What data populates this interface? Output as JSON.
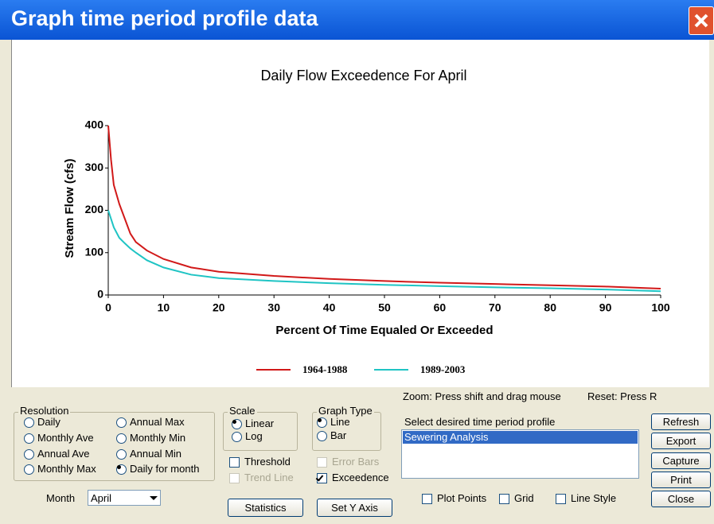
{
  "window": {
    "title": "Graph time period profile data"
  },
  "chart_data": {
    "type": "line",
    "title": "Daily Flow Exceedence For April",
    "x_label": "Percent Of Time Equaled Or Exceeded",
    "y_label": "Stream Flow (cfs)",
    "x": [
      0,
      0.5,
      1,
      2,
      3,
      4,
      5,
      7,
      10,
      15,
      20,
      30,
      40,
      50,
      60,
      70,
      80,
      90,
      100
    ],
    "series": [
      {
        "name": "1964-1988",
        "color": "#d11919",
        "values": [
          400,
          320,
          260,
          215,
          180,
          145,
          125,
          105,
          85,
          65,
          55,
          45,
          38,
          33,
          29,
          26,
          23,
          20,
          15
        ]
      },
      {
        "name": "1989-2003",
        "color": "#1fc4c4",
        "values": [
          200,
          180,
          160,
          135,
          122,
          110,
          100,
          82,
          65,
          48,
          40,
          33,
          28,
          24,
          21,
          18,
          16,
          13,
          9
        ]
      }
    ],
    "xlim": [
      0,
      100
    ],
    "xticks": [
      0,
      10,
      20,
      30,
      40,
      50,
      60,
      70,
      80,
      90,
      100
    ],
    "ylim": [
      0,
      400
    ],
    "yticks": [
      0,
      100,
      200,
      300,
      400
    ],
    "grid": false,
    "legend": "bottom"
  },
  "zoom_hint": "Zoom:  Press shift and drag mouse",
  "reset_hint": "Reset:  Press R",
  "resolution": {
    "label": "Resolution",
    "options": [
      {
        "label": "Daily",
        "selected": false
      },
      {
        "label": "Monthly Ave",
        "selected": false
      },
      {
        "label": "Annual Ave",
        "selected": false
      },
      {
        "label": "Monthly Max",
        "selected": false
      },
      {
        "label": "Annual Max",
        "selected": false
      },
      {
        "label": "Monthly Min",
        "selected": false
      },
      {
        "label": "Annual Min",
        "selected": false
      },
      {
        "label": "Daily for month",
        "selected": true
      }
    ]
  },
  "month": {
    "label": "Month",
    "value": "April"
  },
  "scale": {
    "label": "Scale",
    "options": [
      {
        "label": "Linear",
        "selected": true
      },
      {
        "label": "Log",
        "selected": false
      }
    ]
  },
  "graph_type": {
    "label": "Graph Type",
    "options": [
      {
        "label": "Line",
        "selected": true
      },
      {
        "label": "Bar",
        "selected": false
      }
    ]
  },
  "checkboxes": [
    {
      "label": "Threshold",
      "checked": false,
      "enabled": true
    },
    {
      "label": "Trend Line",
      "checked": false,
      "enabled": false
    },
    {
      "label": "Error Bars",
      "checked": false,
      "enabled": false
    },
    {
      "label": "Exceedence",
      "checked": true,
      "enabled": true
    }
  ],
  "buttons": [
    {
      "label": "Statistics"
    },
    {
      "label": "Set Y Axis"
    }
  ],
  "profile_list": {
    "label": "Select desired time period profile",
    "items": [
      {
        "label": "Sewering Analysis",
        "selected": true
      }
    ]
  },
  "plot_options": [
    {
      "label": "Plot Points",
      "checked": false,
      "enabled": true
    },
    {
      "label": "Grid",
      "checked": false,
      "enabled": true
    },
    {
      "label": "Line Style",
      "checked": false,
      "enabled": true
    }
  ],
  "side_buttons": [
    {
      "label": "Refresh"
    },
    {
      "label": "Export"
    },
    {
      "label": "Capture"
    },
    {
      "label": "Print"
    },
    {
      "label": "Close"
    }
  ]
}
